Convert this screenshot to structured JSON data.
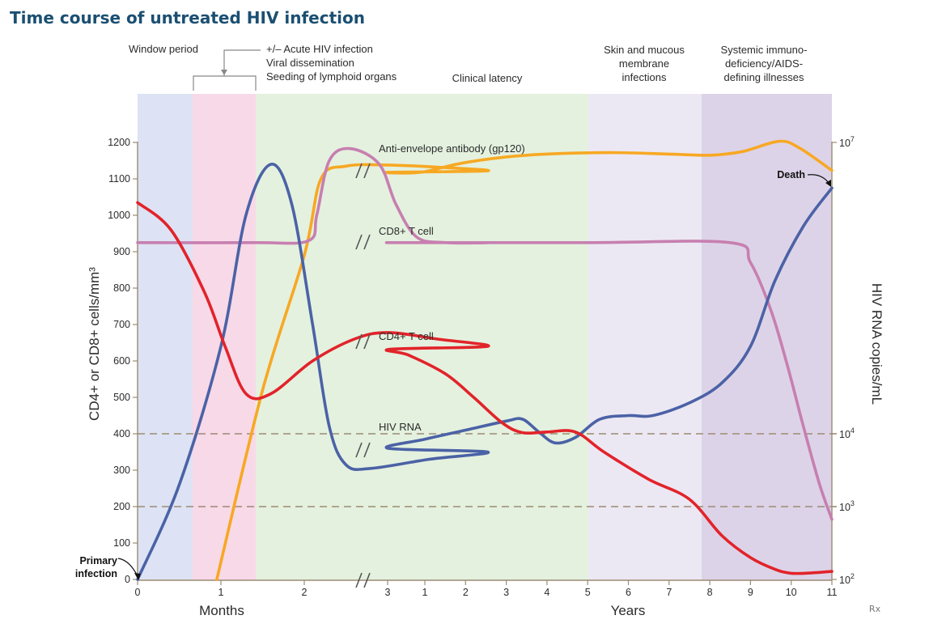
{
  "title": "Time course of untreated HIV infection",
  "phases": [
    {
      "label_lines": [
        "Window period"
      ],
      "color": "#dde3f4"
    },
    {
      "label_lines": [
        "+/– Acute HIV infection",
        "Viral dissemination",
        "Seeding of lymphoid organs"
      ],
      "color": "#f8d9e8"
    },
    {
      "label_lines": [
        "Clinical latency"
      ],
      "color": "#e4f1df"
    },
    {
      "label_lines": [
        "Skin and mucous",
        "membrane",
        "infections"
      ],
      "color": "#ece8f3"
    },
    {
      "label_lines": [
        "Systemic immuno-",
        "deficiency/AIDS-",
        "defining illnesses"
      ],
      "color": "#ddd3e8"
    }
  ],
  "axes": {
    "left_title": "CD4+ or CD8+ cells/mm³",
    "left_ticks": [
      "0",
      "100",
      "200",
      "300",
      "400",
      "500",
      "600",
      "700",
      "800",
      "900",
      "1000",
      "1100",
      "1200"
    ],
    "right_title": "HIV RNA copies/mL",
    "right_ticks": [
      {
        "base": "10",
        "exp": "2"
      },
      {
        "base": "10",
        "exp": "3"
      },
      {
        "base": "10",
        "exp": "4"
      },
      {
        "base": "10",
        "exp": "7"
      }
    ],
    "months_label": "Months",
    "years_label": "Years",
    "month_ticks": [
      "0",
      "1",
      "2",
      "3"
    ],
    "year_ticks": [
      "1",
      "2",
      "3",
      "4",
      "5",
      "6",
      "7",
      "8",
      "9",
      "10",
      "11"
    ]
  },
  "annotations": {
    "primary_infection_lines": [
      "Primary",
      "infection"
    ],
    "death": "Death",
    "logo": "Rx"
  },
  "chart_data": {
    "type": "line",
    "title": "Time course of untreated HIV infection",
    "x_segments": [
      {
        "unit": "months",
        "range": [
          0,
          3
        ]
      },
      {
        "unit": "years",
        "range": [
          1,
          11
        ]
      }
    ],
    "y_left": {
      "label": "CD4+ or CD8+ cells/mm³",
      "ylim": [
        0,
        1200
      ]
    },
    "y_right": {
      "label": "HIV RNA copies/mL",
      "scale": "log",
      "ticks": [
        "10^2",
        "10^3",
        "10^4",
        "10^7"
      ]
    },
    "reference_lines": [
      {
        "y": 400,
        "style": "dashed"
      },
      {
        "y": 200,
        "style": "dashed"
      }
    ],
    "series": [
      {
        "name": "CD4+ T cell",
        "axis": "left",
        "color": "#e2232a",
        "points": [
          {
            "seg": "months",
            "x": 0,
            "y": 1035
          },
          {
            "seg": "months",
            "x": 0.4,
            "y": 960
          },
          {
            "seg": "months",
            "x": 0.8,
            "y": 790
          },
          {
            "seg": "months",
            "x": 1.05,
            "y": 640
          },
          {
            "seg": "months",
            "x": 1.3,
            "y": 510
          },
          {
            "seg": "months",
            "x": 1.6,
            "y": 510
          },
          {
            "seg": "months",
            "x": 2.1,
            "y": 600
          },
          {
            "seg": "months",
            "x": 2.6,
            "y": 660
          },
          {
            "seg": "months",
            "x": 3.0,
            "y": 678
          },
          {
            "seg": "months",
            "x": 3.6,
            "y": 660
          },
          {
            "seg": "months",
            "x": 4.2,
            "y": 640
          },
          {
            "seg": "years",
            "x": 0.15,
            "y": 632
          },
          {
            "seg": "years",
            "x": 0.6,
            "y": 616
          },
          {
            "seg": "years",
            "x": 1.5,
            "y": 565
          },
          {
            "seg": "years",
            "x": 2.2,
            "y": 500
          },
          {
            "seg": "years",
            "x": 2.9,
            "y": 430
          },
          {
            "seg": "years",
            "x": 3.4,
            "y": 403
          },
          {
            "seg": "years",
            "x": 4.0,
            "y": 405
          },
          {
            "seg": "years",
            "x": 4.7,
            "y": 405
          },
          {
            "seg": "years",
            "x": 5.4,
            "y": 350
          },
          {
            "seg": "years",
            "x": 6.5,
            "y": 275
          },
          {
            "seg": "years",
            "x": 7.5,
            "y": 220
          },
          {
            "seg": "years",
            "x": 8.3,
            "y": 120
          },
          {
            "seg": "years",
            "x": 9.0,
            "y": 60
          },
          {
            "seg": "years",
            "x": 9.6,
            "y": 28
          },
          {
            "seg": "years",
            "x": 10.0,
            "y": 17
          },
          {
            "seg": "years",
            "x": 10.5,
            "y": 18
          },
          {
            "seg": "years",
            "x": 11.0,
            "y": 22
          }
        ]
      },
      {
        "name": "CD8+ T cell",
        "axis": "left",
        "color": "#c77fb0",
        "points": [
          {
            "seg": "months",
            "x": 0,
            "y": 925
          },
          {
            "seg": "months",
            "x": 1.4,
            "y": 925
          },
          {
            "seg": "months",
            "x": 2.05,
            "y": 930
          },
          {
            "seg": "months",
            "x": 2.15,
            "y": 1000
          },
          {
            "seg": "months",
            "x": 2.3,
            "y": 1150
          },
          {
            "seg": "months",
            "x": 2.55,
            "y": 1183
          },
          {
            "seg": "months",
            "x": 2.9,
            "y": 1140
          },
          {
            "seg": "months",
            "x": 3.1,
            "y": 1030
          },
          {
            "seg": "months",
            "x": 3.35,
            "y": 940
          },
          {
            "seg": "months",
            "x": 3.7,
            "y": 925
          },
          {
            "seg": "months",
            "x": 4.2,
            "y": 925
          },
          {
            "seg": "years",
            "x": 0.1,
            "y": 925
          },
          {
            "seg": "years",
            "x": 5.0,
            "y": 925
          },
          {
            "seg": "years",
            "x": 8.5,
            "y": 925
          },
          {
            "seg": "years",
            "x": 9.0,
            "y": 870
          },
          {
            "seg": "years",
            "x": 9.5,
            "y": 740
          },
          {
            "seg": "years",
            "x": 9.9,
            "y": 590
          },
          {
            "seg": "years",
            "x": 10.3,
            "y": 420
          },
          {
            "seg": "years",
            "x": 10.7,
            "y": 260
          },
          {
            "seg": "years",
            "x": 11.0,
            "y": 165
          }
        ]
      },
      {
        "name": "Anti-envelope antibody (gp120)",
        "axis": "left",
        "color": "#f7a823",
        "points": [
          {
            "seg": "months",
            "x": 0.95,
            "y": 0
          },
          {
            "seg": "months",
            "x": 1.5,
            "y": 520
          },
          {
            "seg": "months",
            "x": 2.0,
            "y": 890
          },
          {
            "seg": "months",
            "x": 2.2,
            "y": 1100
          },
          {
            "seg": "months",
            "x": 2.5,
            "y": 1135
          },
          {
            "seg": "months",
            "x": 3.0,
            "y": 1138
          },
          {
            "seg": "months",
            "x": 3.6,
            "y": 1132
          },
          {
            "seg": "months",
            "x": 4.2,
            "y": 1122
          },
          {
            "seg": "years",
            "x": 0.1,
            "y": 1118
          },
          {
            "seg": "years",
            "x": 0.9,
            "y": 1118
          },
          {
            "seg": "years",
            "x": 2.0,
            "y": 1145
          },
          {
            "seg": "years",
            "x": 3.5,
            "y": 1165
          },
          {
            "seg": "years",
            "x": 5.5,
            "y": 1172
          },
          {
            "seg": "years",
            "x": 7.0,
            "y": 1168
          },
          {
            "seg": "years",
            "x": 8.0,
            "y": 1165
          },
          {
            "seg": "years",
            "x": 8.8,
            "y": 1175
          },
          {
            "seg": "years",
            "x": 9.7,
            "y": 1203
          },
          {
            "seg": "years",
            "x": 10.2,
            "y": 1185
          },
          {
            "seg": "years",
            "x": 11.0,
            "y": 1123
          }
        ]
      },
      {
        "name": "HIV RNA",
        "axis": "left-equivalent",
        "color": "#4b62a6",
        "points": [
          {
            "seg": "months",
            "x": 0,
            "y": 0
          },
          {
            "seg": "months",
            "x": 0.5,
            "y": 260
          },
          {
            "seg": "months",
            "x": 1.0,
            "y": 640
          },
          {
            "seg": "months",
            "x": 1.3,
            "y": 1000
          },
          {
            "seg": "months",
            "x": 1.6,
            "y": 1140
          },
          {
            "seg": "months",
            "x": 1.85,
            "y": 1030
          },
          {
            "seg": "months",
            "x": 2.1,
            "y": 700
          },
          {
            "seg": "months",
            "x": 2.3,
            "y": 420
          },
          {
            "seg": "months",
            "x": 2.5,
            "y": 315
          },
          {
            "seg": "months",
            "x": 2.8,
            "y": 305
          },
          {
            "seg": "months",
            "x": 3.5,
            "y": 330
          },
          {
            "seg": "months",
            "x": 4.2,
            "y": 350
          },
          {
            "seg": "years",
            "x": 0.1,
            "y": 360
          },
          {
            "seg": "years",
            "x": 1.0,
            "y": 385
          },
          {
            "seg": "years",
            "x": 2.0,
            "y": 410
          },
          {
            "seg": "years",
            "x": 3.0,
            "y": 435
          },
          {
            "seg": "years",
            "x": 3.4,
            "y": 440
          },
          {
            "seg": "years",
            "x": 3.8,
            "y": 405
          },
          {
            "seg": "years",
            "x": 4.2,
            "y": 375
          },
          {
            "seg": "years",
            "x": 4.7,
            "y": 390
          },
          {
            "seg": "years",
            "x": 5.3,
            "y": 440
          },
          {
            "seg": "years",
            "x": 6.0,
            "y": 450
          },
          {
            "seg": "years",
            "x": 6.6,
            "y": 450
          },
          {
            "seg": "years",
            "x": 7.5,
            "y": 485
          },
          {
            "seg": "years",
            "x": 8.3,
            "y": 540
          },
          {
            "seg": "years",
            "x": 9.0,
            "y": 640
          },
          {
            "seg": "years",
            "x": 9.6,
            "y": 820
          },
          {
            "seg": "years",
            "x": 10.3,
            "y": 970
          },
          {
            "seg": "years",
            "x": 11.0,
            "y": 1075
          }
        ]
      }
    ]
  }
}
